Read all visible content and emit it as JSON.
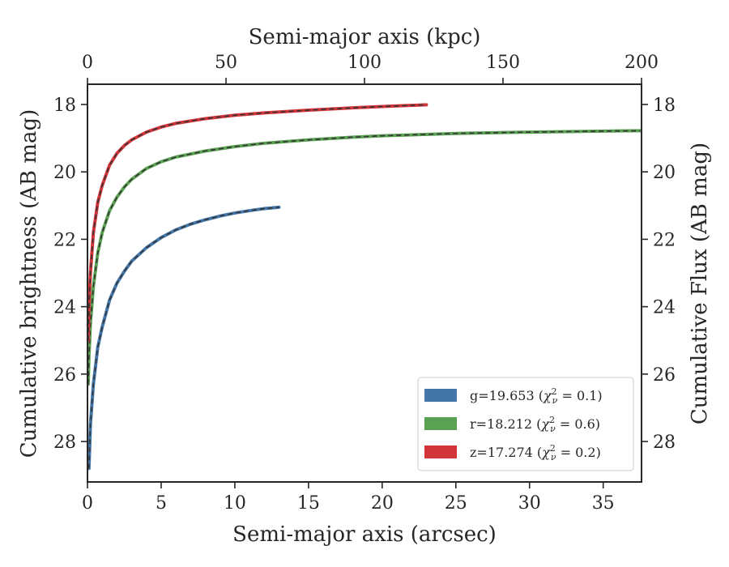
{
  "chart_data": {
    "type": "line",
    "xlabel": "Semi-major axis (arcsec)",
    "xlabel_top": "Semi-major axis (kpc)",
    "ylabel": "Cumulative brightness (AB mag)",
    "ylabel_right": "Cumulative Flux (AB mag)",
    "xlim": [
      0,
      37.6
    ],
    "xlim_top": [
      0,
      200
    ],
    "ylim": [
      29.2,
      17.4
    ],
    "y_inverted": true,
    "grid": false,
    "legend_position": "lower-right",
    "x_ticks": [
      0,
      5,
      10,
      15,
      20,
      25,
      30,
      35
    ],
    "x_tick_labels": [
      "0",
      "5",
      "10",
      "15",
      "20",
      "25",
      "30",
      "35"
    ],
    "x_ticks_top": [
      0,
      50,
      100,
      150,
      200
    ],
    "x_tick_labels_top": [
      "0",
      "50",
      "100",
      "150",
      "200"
    ],
    "y_ticks": [
      18,
      20,
      22,
      24,
      26,
      28
    ],
    "y_tick_labels": [
      "18",
      "20",
      "22",
      "24",
      "26",
      "28"
    ],
    "series": [
      {
        "name": "g=19.653 (χ²_ν = 0.1)",
        "legend_label": {
          "prefix": "g=19.653 (",
          "chi": "χ",
          "sup": "2",
          "sub": "ν",
          "suffix": " = 0.1)"
        },
        "color": "#4475a8",
        "x": [
          0.1,
          0.2,
          0.4,
          0.7,
          1.0,
          1.5,
          2.0,
          2.5,
          3.0,
          4.0,
          5.0,
          6.0,
          7.0,
          8.0,
          9.0,
          10.0,
          11.0,
          12.0,
          13.0
        ],
        "y": [
          28.8,
          27.5,
          26.3,
          25.2,
          24.6,
          23.8,
          23.3,
          22.95,
          22.65,
          22.25,
          21.95,
          21.72,
          21.55,
          21.42,
          21.31,
          21.22,
          21.15,
          21.09,
          21.05
        ]
      },
      {
        "name": "r=18.212 (χ²_ν = 0.6)",
        "legend_label": {
          "prefix": "r=18.212 (",
          "chi": "χ",
          "sup": "2",
          "sub": "ν",
          "suffix": " = 0.6)"
        },
        "color": "#5ba153",
        "x": [
          0.05,
          0.1,
          0.2,
          0.4,
          0.7,
          1.0,
          1.5,
          2.0,
          2.5,
          3.0,
          4.0,
          5.0,
          6.0,
          8.0,
          10.0,
          12.0,
          15.0,
          18.0,
          20.0,
          25.0,
          30.0,
          35.0,
          37.5
        ],
        "y": [
          26.3,
          25.5,
          24.5,
          23.4,
          22.4,
          21.8,
          21.15,
          20.75,
          20.45,
          20.22,
          19.9,
          19.7,
          19.56,
          19.38,
          19.25,
          19.15,
          19.05,
          18.97,
          18.93,
          18.86,
          18.82,
          18.79,
          18.78
        ]
      },
      {
        "name": "z=17.274 (χ²_ν = 0.2)",
        "legend_label": {
          "prefix": "z=17.274 (",
          "chi": "χ",
          "sup": "2",
          "sub": "ν",
          "suffix": " = 0.2)"
        },
        "color": "#d1353a",
        "x": [
          0.05,
          0.1,
          0.2,
          0.4,
          0.7,
          1.0,
          1.5,
          2.0,
          2.5,
          3.0,
          4.0,
          5.0,
          6.0,
          8.0,
          10.0,
          12.0,
          15.0,
          18.0,
          20.0,
          23.0
        ],
        "y": [
          25.0,
          24.0,
          23.0,
          21.8,
          20.9,
          20.4,
          19.8,
          19.45,
          19.22,
          19.05,
          18.82,
          18.67,
          18.56,
          18.42,
          18.32,
          18.25,
          18.17,
          18.1,
          18.06,
          18.01
        ]
      }
    ]
  }
}
